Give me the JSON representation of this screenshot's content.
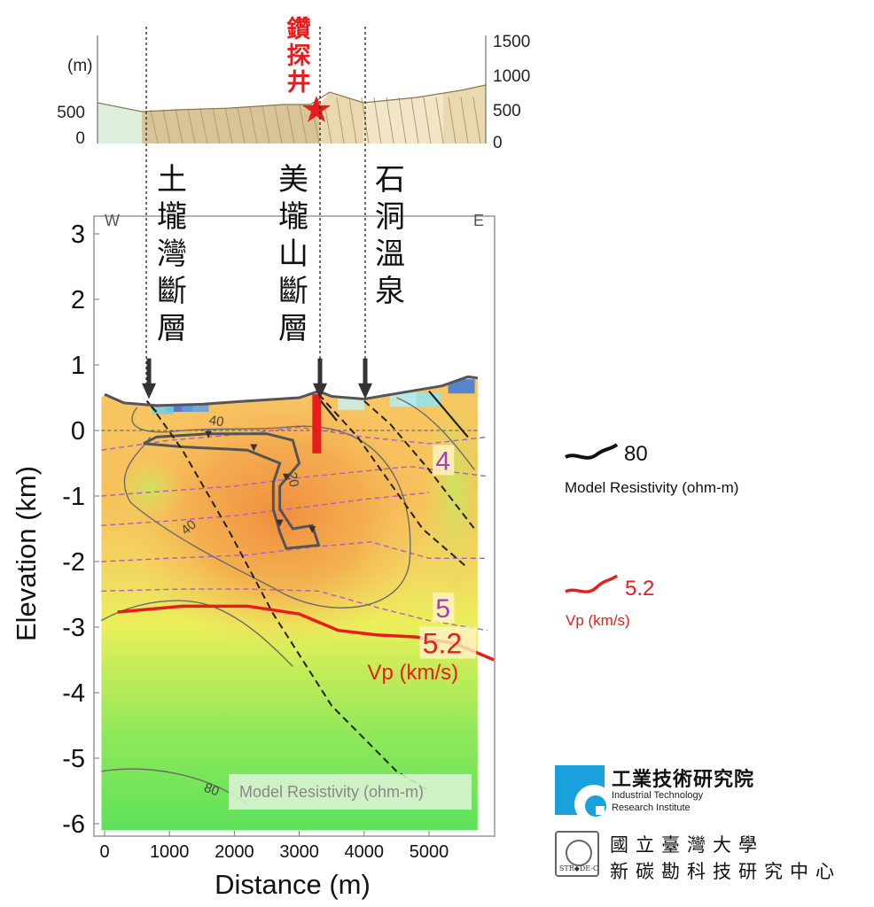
{
  "chart_data": {
    "type": "heatmap",
    "xlabel": "Distance (m)",
    "ylabel": "Elevation (km)",
    "xlim": [
      -100,
      5900
    ],
    "ylim": [
      -6.3,
      3.3
    ],
    "x_ticks": [
      "0",
      "1000",
      "2000",
      "3000",
      "4000",
      "5000"
    ],
    "x_tick_values": [
      0,
      1000,
      2000,
      3000,
      4000,
      5000
    ],
    "y_ticks": [
      "3",
      "2",
      "1",
      "0",
      "-1",
      "-2",
      "-3",
      "-4",
      "-5",
      "-6"
    ],
    "y_tick_values": [
      3,
      2,
      1,
      0,
      -1,
      -2,
      -3,
      -4,
      -5,
      -6
    ],
    "corner_labels": {
      "west": "W",
      "east": "E"
    },
    "inset_label": "Model Resistivity (ohm-m)",
    "surface_profile": [
      [
        0,
        0.55
      ],
      [
        300,
        0.42
      ],
      [
        800,
        0.38
      ],
      [
        1500,
        0.4
      ],
      [
        2200,
        0.45
      ],
      [
        3000,
        0.5
      ],
      [
        3300,
        0.6
      ],
      [
        3500,
        0.52
      ],
      [
        4000,
        0.48
      ],
      [
        4600,
        0.58
      ],
      [
        5200,
        0.68
      ],
      [
        5600,
        0.82
      ],
      [
        5750,
        0.8
      ]
    ],
    "vp_5_2_contour": [
      [
        200,
        -2.77
      ],
      [
        1200,
        -2.68
      ],
      [
        2200,
        -2.68
      ],
      [
        3000,
        -2.8
      ],
      [
        3600,
        -3.05
      ],
      [
        4200,
        -3.12
      ],
      [
        4800,
        -3.15
      ],
      [
        5400,
        -3.25
      ],
      [
        6000,
        -3.5
      ]
    ],
    "contour_labels": {
      "resistivity": [
        "40",
        "20",
        "40",
        "80"
      ],
      "vp": [
        "4",
        "5",
        "5.2"
      ],
      "vp_unit": "Vp (km/s)"
    },
    "annotations": [
      {
        "name": "土壠灣斷層",
        "x": 700
      },
      {
        "name": "美壠山斷層",
        "x": 3300
      },
      {
        "name": "石洞溫泉",
        "x": 4000
      }
    ],
    "well_segment": {
      "x": 3270,
      "y_top": 0.55,
      "y_bottom": -0.35,
      "color": "#e81c1c"
    },
    "colors": {
      "resistivity_contour": "#333333",
      "vp_contour": "#e81c1c",
      "vp_dashed": "#b05cc8",
      "fault": "#222222"
    }
  },
  "topo_inset": {
    "left_unit": "(m)",
    "left_ticks": [
      "500",
      "0"
    ],
    "right_ticks": [
      "1500",
      "1000",
      "500",
      "0"
    ],
    "well_label": "鑽探井",
    "well_label_color": "#e81c1c"
  },
  "legend": {
    "resistivity": {
      "value": "80",
      "label": "Model Resistivity (ohm-m)"
    },
    "vp": {
      "value": "5.2",
      "label": "Vp (km/s)"
    }
  },
  "logos": {
    "itri_name": "工業技術研究院",
    "itri_en_1": "Industrial Technology",
    "itri_en_2": "Research Institute",
    "ntu_line1": "國立臺灣大學",
    "ntu_line2": "新碳勘科技研究中心",
    "ntu_seal": "STR◆DE-C"
  }
}
